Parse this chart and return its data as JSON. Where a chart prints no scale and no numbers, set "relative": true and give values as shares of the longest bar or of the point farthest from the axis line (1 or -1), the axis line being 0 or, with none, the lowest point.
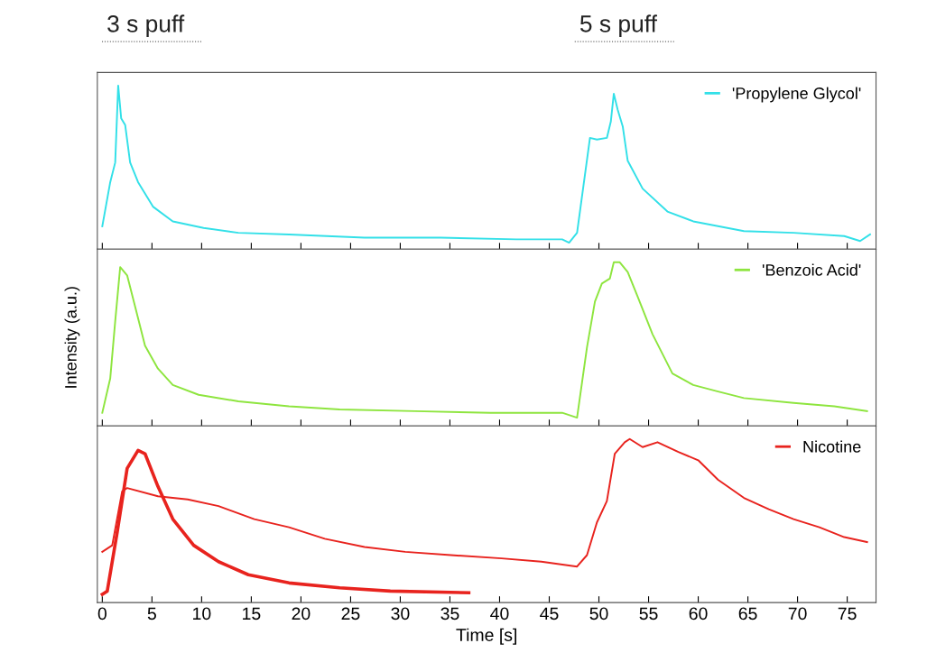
{
  "chart_data": [
    {
      "type": "line",
      "relative": true,
      "annotations": [
        "3 s puff",
        "5 s puff"
      ],
      "xlim": [
        -0.5,
        77.9
      ],
      "xticks": [
        0,
        5,
        10,
        15,
        20,
        25,
        30,
        35,
        40,
        45,
        50,
        55,
        60,
        65,
        70,
        75
      ],
      "tick_labels": false,
      "legend": "top right",
      "series": [
        {
          "name": "'Propylene Glycol'",
          "color": "#33e0e8",
          "x": [
            0,
            0.8,
            1.3,
            1.6,
            1.9,
            2.3,
            2.8,
            3.6,
            5.1,
            7.1,
            10.2,
            13.7,
            18.8,
            26.4,
            34.1,
            41.7,
            46.3,
            47.0,
            47.8,
            49.1,
            49.8,
            50.8,
            51.2,
            51.5,
            51.9,
            52.4,
            52.9,
            54.4,
            56.9,
            59.5,
            64.6,
            69.6,
            74.7,
            76.3,
            77.3
          ],
          "values": [
            0.14,
            0.41,
            0.53,
            1.0,
            0.8,
            0.76,
            0.53,
            0.41,
            0.26,
            0.17,
            0.13,
            0.1,
            0.09,
            0.07,
            0.07,
            0.06,
            0.06,
            0.04,
            0.1,
            0.68,
            0.67,
            0.68,
            0.78,
            0.95,
            0.85,
            0.75,
            0.54,
            0.37,
            0.23,
            0.17,
            0.11,
            0.1,
            0.08,
            0.05,
            0.09
          ]
        }
      ]
    },
    {
      "type": "line",
      "relative": true,
      "ylabel": "Intensity (a.u.)",
      "xlim": [
        -0.5,
        77.9
      ],
      "xticks": [
        0,
        5,
        10,
        15,
        20,
        25,
        30,
        35,
        40,
        45,
        50,
        55,
        60,
        65,
        70,
        75
      ],
      "tick_labels": false,
      "legend": "top right",
      "series": [
        {
          "name": "'Benzoic Acid'",
          "color": "#8ee53f",
          "x": [
            0,
            0.8,
            1.3,
            1.8,
            2.5,
            3.3,
            4.3,
            5.6,
            7.1,
            9.7,
            13.7,
            18.8,
            23.9,
            31.5,
            39.1,
            46.3,
            47.8,
            48.8,
            49.6,
            50.3,
            51.1,
            51.5,
            52.1,
            52.9,
            53.9,
            55.4,
            57.4,
            59.5,
            62.0,
            64.6,
            69.6,
            73.7,
            77.0
          ],
          "values": [
            0.08,
            0.29,
            0.64,
            0.97,
            0.92,
            0.73,
            0.49,
            0.35,
            0.25,
            0.19,
            0.15,
            0.12,
            0.1,
            0.09,
            0.08,
            0.08,
            0.05,
            0.48,
            0.76,
            0.87,
            0.9,
            1.0,
            1.0,
            0.94,
            0.79,
            0.56,
            0.32,
            0.25,
            0.21,
            0.17,
            0.14,
            0.12,
            0.09
          ]
        }
      ]
    },
    {
      "type": "line",
      "relative": true,
      "xlabel": "Time [s]",
      "xlim": [
        -0.5,
        77.9
      ],
      "xticks": [
        0,
        5,
        10,
        15,
        20,
        25,
        30,
        35,
        40,
        45,
        50,
        55,
        60,
        65,
        70,
        75
      ],
      "tick_labels": "x",
      "legend": "top right",
      "series": [
        {
          "name": "Nicotine",
          "color": "#e8231e",
          "x": [
            0,
            1,
            2,
            2.5,
            5.6,
            8.6,
            11.7,
            15.3,
            18.8,
            22.4,
            26.4,
            30.5,
            35.1,
            40.2,
            44.2,
            47.8,
            48.8,
            49.8,
            50.8,
            51.6,
            52.6,
            53.1,
            54.4,
            55.9,
            58.0,
            60.0,
            62.0,
            64.6,
            67.1,
            69.6,
            72.2,
            74.7,
            77.0
          ],
          "values": [
            0.31,
            0.35,
            0.68,
            0.7,
            0.65,
            0.63,
            0.59,
            0.51,
            0.46,
            0.39,
            0.34,
            0.31,
            0.29,
            0.27,
            0.25,
            0.22,
            0.29,
            0.49,
            0.62,
            0.91,
            0.98,
            1.0,
            0.95,
            0.98,
            0.92,
            0.87,
            0.75,
            0.64,
            0.57,
            0.51,
            0.46,
            0.4,
            0.37
          ]
        },
        {
          "color": "#e8231e",
          "x": [
            0,
            0.5,
            1.5,
            2.5,
            3.6,
            4.3,
            5.6,
            7.1,
            9.2,
            11.7,
            14.7,
            18.8,
            23.9,
            29.0,
            36.9
          ],
          "values": [
            0.05,
            0.07,
            0.43,
            0.82,
            0.93,
            0.91,
            0.71,
            0.51,
            0.35,
            0.25,
            0.17,
            0.12,
            0.09,
            0.07,
            0.06
          ]
        }
      ]
    }
  ]
}
